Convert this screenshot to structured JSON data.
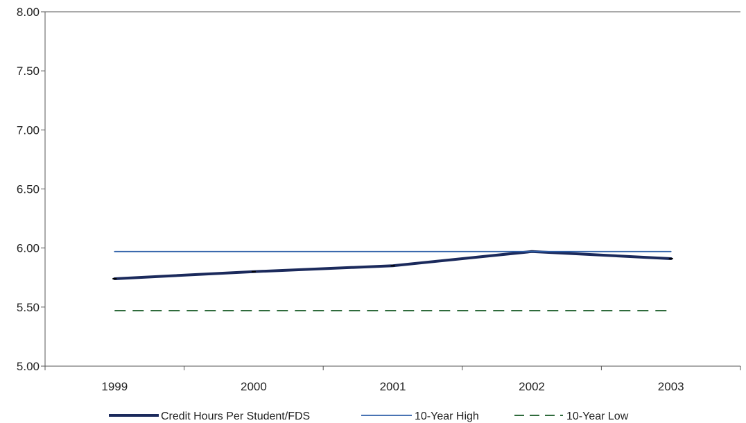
{
  "chart_data": {
    "type": "line",
    "title": "",
    "xlabel": "",
    "ylabel": "",
    "categories": [
      "1999",
      "2000",
      "2001",
      "2002",
      "2003"
    ],
    "ylim": [
      5.0,
      8.0
    ],
    "yticks": [
      "8.00",
      "7.50",
      "7.00",
      "6.50",
      "6.00",
      "5.50",
      "5.00"
    ],
    "grid": false,
    "legend_position": "bottom",
    "series": [
      {
        "name": "Credit Hours Per Student/FDS",
        "values": [
          5.74,
          5.8,
          5.85,
          5.97,
          5.91
        ],
        "color": "#1b2a5c",
        "style": "solid-thick"
      },
      {
        "name": "10-Year High",
        "values": [
          5.97,
          5.97,
          5.97,
          5.97,
          5.97
        ],
        "color": "#2e5fa8",
        "style": "solid-thin"
      },
      {
        "name": "10-Year Low",
        "values": [
          5.47,
          5.47,
          5.47,
          5.47,
          5.47
        ],
        "color": "#2f6b3c",
        "style": "dashed"
      }
    ]
  }
}
